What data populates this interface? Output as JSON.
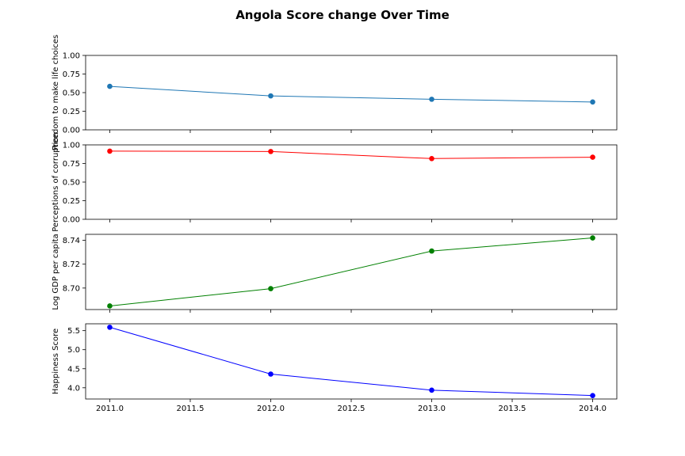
{
  "figure_title": "Angola Score change Over Time",
  "chart_data": [
    {
      "type": "line",
      "ylabel": "Freedom to make life choices",
      "color": "#1f77b4",
      "x": [
        2011.0,
        2012.0,
        2013.0,
        2014.0
      ],
      "values": [
        0.584,
        0.456,
        0.411,
        0.374
      ],
      "xlim": [
        2010.85,
        2014.15
      ],
      "ylim": [
        0.0,
        1.0
      ],
      "yticks": [
        0.0,
        0.25,
        0.5,
        0.75,
        1.0
      ],
      "ytick_labels": [
        "0.00",
        "0.25",
        "0.50",
        "0.75",
        "1.00"
      ]
    },
    {
      "type": "line",
      "ylabel": "Perceptions of corruption",
      "color": "#ff0000",
      "x": [
        2011.0,
        2012.0,
        2013.0,
        2014.0
      ],
      "values": [
        0.916,
        0.911,
        0.816,
        0.834
      ],
      "xlim": [
        2010.85,
        2014.15
      ],
      "ylim": [
        0.0,
        1.0
      ],
      "yticks": [
        0.0,
        0.25,
        0.5,
        0.75,
        1.0
      ],
      "ytick_labels": [
        "0.00",
        "0.25",
        "0.50",
        "0.75",
        "1.00"
      ]
    },
    {
      "type": "line",
      "ylabel": "Log GDP per capita",
      "color": "#008000",
      "x": [
        2011.0,
        2012.0,
        2013.0,
        2014.0
      ],
      "values": [
        8.685,
        8.6995,
        8.731,
        8.742
      ],
      "xlim": [
        2010.85,
        2014.15
      ],
      "ylim": [
        8.682,
        8.745
      ],
      "yticks": [
        8.7,
        8.72,
        8.74
      ],
      "ytick_labels": [
        "8.70",
        "8.72",
        "8.74"
      ]
    },
    {
      "type": "line",
      "ylabel": "Happiness Score",
      "color": "#0000ff",
      "x": [
        2011.0,
        2012.0,
        2013.0,
        2014.0
      ],
      "values": [
        5.589,
        4.36,
        3.937,
        3.795
      ],
      "xlim": [
        2010.85,
        2014.15
      ],
      "ylim": [
        3.705,
        5.68
      ],
      "yticks": [
        4.0,
        4.5,
        5.0,
        5.5
      ],
      "ytick_labels": [
        "4.0",
        "4.5",
        "5.0",
        "5.5"
      ],
      "xticks": [
        2011.0,
        2011.5,
        2012.0,
        2012.5,
        2013.0,
        2013.5,
        2014.0
      ],
      "xtick_labels": [
        "2011.0",
        "2011.5",
        "2012.0",
        "2012.5",
        "2013.0",
        "2013.5",
        "2014.0"
      ]
    }
  ]
}
